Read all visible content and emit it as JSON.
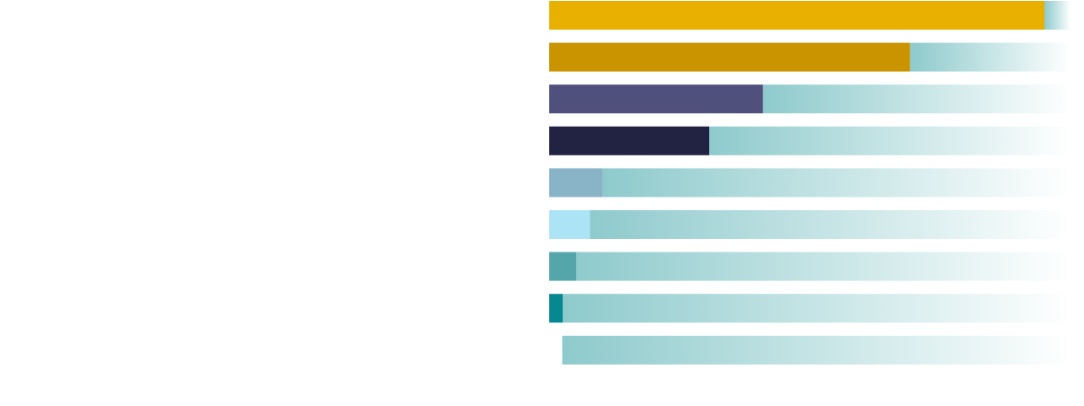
{
  "chart_data": {
    "type": "bar",
    "orientation": "horizontal",
    "stacked": true,
    "title": "",
    "xlabel": "",
    "ylabel": "",
    "xlim": [
      0,
      100
    ],
    "grid": false,
    "legend": "none",
    "track_color_start": "#8ecacc",
    "track_color_end": "#ffffff",
    "bars": [
      {
        "value": 95.0,
        "color": "#e8b000"
      },
      {
        "value": 69.2,
        "color": "#c99400"
      },
      {
        "value": 41.0,
        "color": "#50507c"
      },
      {
        "value": 30.7,
        "color": "#222242"
      },
      {
        "value": 10.3,
        "color": "#89b4c8"
      },
      {
        "value": 7.8,
        "color": "#ace4f6"
      },
      {
        "value": 5.2,
        "color": "#54a6aa"
      },
      {
        "value": 2.6,
        "color": "#078890"
      },
      {
        "value": 2.5,
        "color": "#ffffff"
      }
    ]
  }
}
